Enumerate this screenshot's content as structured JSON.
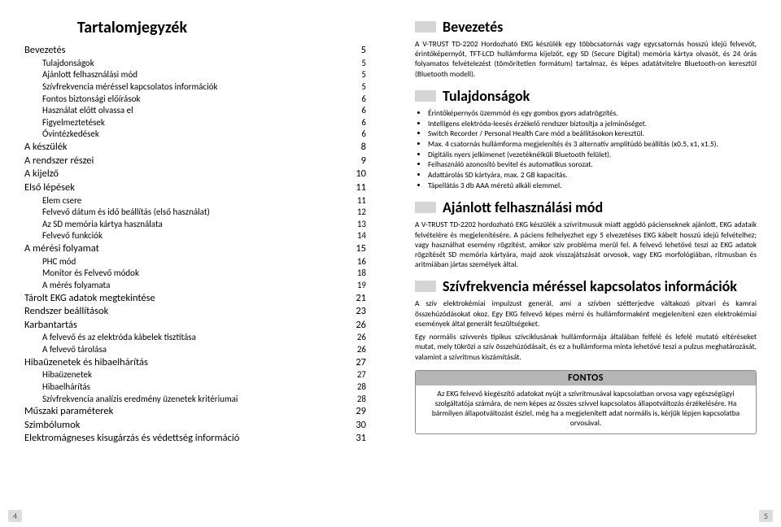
{
  "left": {
    "title": "Tartalomjegyzék",
    "toc": [
      {
        "lvl": 0,
        "label": "Bevezetés",
        "pg": "5"
      },
      {
        "lvl": 1,
        "label": "Tulajdonságok",
        "pg": "5"
      },
      {
        "lvl": 1,
        "label": "Ajánlott felhasználási mód",
        "pg": "5"
      },
      {
        "lvl": 1,
        "label": "Szívfrekvencia méréssel kapcsolatos információk",
        "pg": "5"
      },
      {
        "lvl": 1,
        "label": "Fontos biztonsági előírások",
        "pg": "6"
      },
      {
        "lvl": 1,
        "label": "Használat előtt olvassa el",
        "pg": "6"
      },
      {
        "lvl": 1,
        "label": "Figyelmeztetések",
        "pg": "6"
      },
      {
        "lvl": 1,
        "label": "Óvintézkedések",
        "pg": "6"
      },
      {
        "lvl": 0,
        "label": "A készülék",
        "pg": "8"
      },
      {
        "lvl": 0,
        "label": "A rendszer részei",
        "pg": "9"
      },
      {
        "lvl": 0,
        "label": "A kijelző",
        "pg": "10"
      },
      {
        "lvl": 0,
        "label": "Első lépések",
        "pg": "11"
      },
      {
        "lvl": 1,
        "label": "Elem csere",
        "pg": "11"
      },
      {
        "lvl": 1,
        "label": "Felvevő dátum és idő beállítás (első használat)",
        "pg": "12"
      },
      {
        "lvl": 1,
        "label": "Az SD memória kártya használata",
        "pg": "13"
      },
      {
        "lvl": 1,
        "label": "Felvevő funkciók",
        "pg": "14"
      },
      {
        "lvl": 0,
        "label": "A mérési folyamat",
        "pg": "15"
      },
      {
        "lvl": 1,
        "label": "PHC mód",
        "pg": "16"
      },
      {
        "lvl": 1,
        "label": "Monitor és Felvevő módok",
        "pg": "18"
      },
      {
        "lvl": 1,
        "label": "A mérés folyamata",
        "pg": "19"
      },
      {
        "lvl": 0,
        "label": "Tárolt EKG adatok megtekintése",
        "pg": "21"
      },
      {
        "lvl": 0,
        "label": "Rendszer beállítások",
        "pg": "23"
      },
      {
        "lvl": 0,
        "label": "Karbantartás",
        "pg": "26"
      },
      {
        "lvl": 1,
        "label": "A felvevő és az elektróda kábelek tisztítása",
        "pg": "26"
      },
      {
        "lvl": 1,
        "label": "A felvevő tárolása",
        "pg": "26"
      },
      {
        "lvl": 0,
        "label": "Hibaüzenetek és hibaelhárítás",
        "pg": "27"
      },
      {
        "lvl": 1,
        "label": "Hibaüzenetek",
        "pg": "27"
      },
      {
        "lvl": 1,
        "label": "Hibaelhárítás",
        "pg": "28"
      },
      {
        "lvl": 1,
        "label": "Szívfrekvencia analízis eredmény üzenetek kritériumai",
        "pg": "28"
      },
      {
        "lvl": 0,
        "label": "Műszaki paraméterek",
        "pg": "29"
      },
      {
        "lvl": 0,
        "label": "Szimbólumok",
        "pg": "30"
      },
      {
        "lvl": 0,
        "label": "Elektromágneses kisugárzás és védettség információ",
        "pg": "31"
      }
    ],
    "pagenum": "4"
  },
  "right": {
    "sections": {
      "s1": {
        "title": "Bevezetés",
        "body": "A V-TRUST TD-2202 Hordozható EKG készülék egy többcsatornás vagy egycsatornás hosszú idejű felvevőt, érintőképernyőt, TFT-LCD hullámforma kijelzőt, egy SD (Secure Digital) memória kártya olvasót, és 24 órás folyamatos felvételezést (tömörítetlen formátum) tartalmaz, és képes adatátvitelre Bluetooth-on keresztül (Bluetooth modell)."
      },
      "s2": {
        "title": "Tulajdonságok",
        "items": [
          "Érintőképernyős üzemmód és egy gombos gyors adatrögzítés.",
          "Intelligens elektróda-leesés érzékelő rendszer biztosítja a jelminőséget.",
          "Switch Recorder / Personal Health Care mód a beállításokon keresztül.",
          "Max. 4 csatornás hullámforma megjelenítés és 3 alternatív amplitúdó beállítás (x0.5, x1, x1.5).",
          "Digitális nyers jelkimenet (vezetéknélküli Bluetooth felület).",
          "Felhasználó azonosító bevitel és automatikus sorozat.",
          "Adattárolás SD kártyára, max. 2 GB kapacitás.",
          "Tápellátás 3 db AAA méretű alkáli elemmel."
        ]
      },
      "s3": {
        "title": "Ajánlott felhasználási mód",
        "body": "A V-TRUST TD-2202 hordozható EKG készülék a szívritmusuk miatt aggódó pácienseknek ajánlott, EKG adataik felvételére és megjelenítésére. A páciens felhelyezhet egy 5 elvezetéses EKG kábelt hosszú idejű felvételhez; vagy használhat esemény rögzítést, amikor szív probléma merül fel. A felvevő lehetővé teszi az EKG adatok rögzítését SD memória kártyára, majd azok visszajátszását orvosok, vagy EKG morfológiában, ritmusban és aritmiában jártas személyek által."
      },
      "s4": {
        "title": "Szívfrekvencia méréssel kapcsolatos információk",
        "p1": "A szív elektrokémiai impulzust generál, ami a szívben szétterjedve váltakozó pitvari és kamrai összehúzódásokat okoz. Egy EKG felvevő képes mérni és hullámformaként megjeleníteni ezen elektrokémiai események által generált feszültségeket.",
        "p2": "Egy normális szívverés tipikus szívciklusának hullámformája általában felfelé és lefelé mutató eltéréseket mutat, mely tükrözi a szív összehúzódásait, és ez a hullámforma minta lehetővé teszi a pulzus meghatározását, valamint a szívritmus kiszámítását."
      }
    },
    "box": {
      "hdr": "FONTOS",
      "content": "Az EKG felvevő kiegészítő adatokat nyújt a szívritmusával kapcsolatban orvosa vagy egészségügyi szolgáltatója számára, de nem képes az összes szívvel kapcsolatos állapotváltozás érzékelésére. Ha bármilyen állapotváltozást észlel, még ha a megjelenített adat normális is, kérjük lépjen kapcsolatba orvosával."
    },
    "pagenum": "5"
  },
  "colors": {
    "barGray": "#d5d5d5",
    "boxHdr": "#b5b5b5",
    "boxBorder": "#8a8a8a",
    "pageNumBg": "#dddddd",
    "pageNumText": "#555555"
  }
}
